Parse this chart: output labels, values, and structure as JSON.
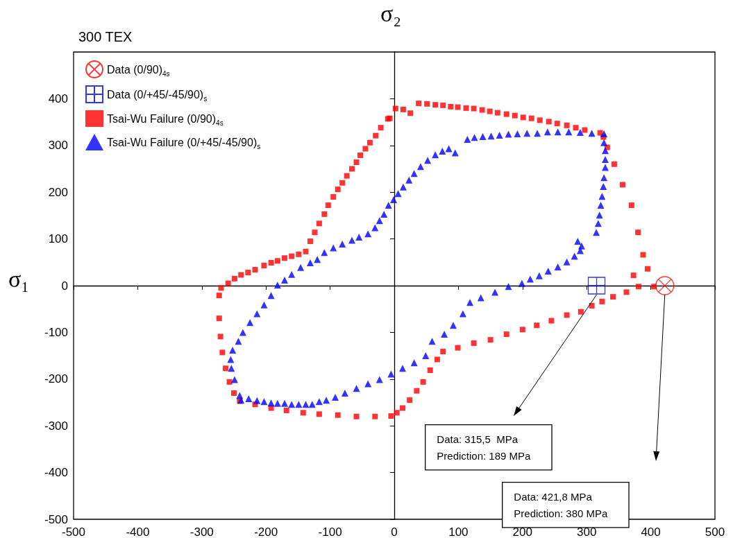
{
  "chart_data": {
    "type": "scatter",
    "title": "300 TEX",
    "xlabel": "σ₂",
    "ylabel": "σ₁",
    "xlim": [
      -500,
      500
    ],
    "xticks": [
      -500,
      -400,
      -300,
      -200,
      -100,
      0,
      100,
      200,
      300,
      400,
      500
    ],
    "ylim": [
      -500,
      500
    ],
    "yticks": [
      -500,
      -400,
      -300,
      -200,
      -100,
      0,
      100,
      200,
      300,
      400
    ],
    "legend": "top left",
    "series": [
      {
        "name": "Data (0/90)$_{4s}$",
        "color": "#ff0000",
        "marker": "circle",
        "x": [
          421.8
        ],
        "values": [
          0
        ]
      },
      {
        "name": "Data (0/+45/-45/90)$_{s}$",
        "color": "#0000ff",
        "marker": "cross",
        "x": [
          315.5
        ],
        "values": [
          0
        ]
      },
      {
        "name": "Tsai-Wu Failure (0/90)$_{4s}$",
        "color": "#ff0000",
        "marker": "square",
        "x": [
          395,
          388,
          380,
          370,
          356,
          343,
          332,
          326,
          321,
          297,
          283,
          269,
          254,
          241,
          227,
          214,
          201,
          188,
          175,
          161,
          149,
          137,
          124,
          112,
          99,
          88,
          76,
          64,
          51,
          38,
          25,
          14,
          2,
          -7,
          -10,
          -21,
          -29,
          -38,
          -45,
          -53,
          -59,
          -66,
          -74,
          -81,
          -88,
          -95,
          -103,
          -109,
          -117,
          -124,
          -131,
          -138,
          -149,
          -160,
          -171,
          -182,
          -192,
          -203,
          -217,
          -228,
          -239,
          -249,
          -259,
          -270,
          -273,
          -273,
          -271,
          -268,
          -263,
          -257,
          -250,
          -241,
          -217,
          -192,
          -168,
          -142,
          -117,
          -88,
          -59,
          -30,
          -5,
          4,
          13,
          24,
          35,
          45,
          56,
          67,
          76,
          99,
          124,
          150,
          175,
          200,
          222,
          245,
          269,
          291,
          308,
          324,
          341,
          362,
          381,
          373,
          405
        ],
        "values": [
          36,
          66,
          114,
          172,
          216,
          260,
          296,
          318,
          327,
          333,
          338,
          343,
          347,
          351,
          354,
          358,
          360,
          364,
          367,
          370,
          373,
          376,
          379,
          380,
          382,
          383,
          386,
          387,
          389,
          390,
          369,
          377,
          379,
          358,
          357,
          338,
          321,
          306,
          293,
          279,
          264,
          250,
          235,
          220,
          206,
          190,
          172,
          153,
          133,
          114,
          95,
          73,
          67,
          63,
          59,
          53,
          49,
          43,
          34,
          28,
          23,
          15,
          5,
          -5,
          -21,
          -70,
          -109,
          -143,
          -177,
          -206,
          -230,
          -247,
          -254,
          -262,
          -267,
          -272,
          -275,
          -277,
          -280,
          -280,
          -279,
          -272,
          -262,
          -245,
          -225,
          -206,
          -181,
          -158,
          -141,
          -133,
          -123,
          -116,
          -104,
          -94,
          -85,
          -75,
          -63,
          -56,
          -43,
          -34,
          -24,
          -14,
          -2,
          22,
          -2
        ]
      },
      {
        "name": "Tsai-Wu Failure (0/+45/-45/90)$_{s}$",
        "color": "#0000ff",
        "marker": "triangle",
        "x": [
          327,
          308,
          290,
          272,
          255,
          239,
          223,
          207,
          192,
          178,
          164,
          151,
          138,
          125,
          114,
          95,
          85,
          75,
          64,
          52,
          41,
          31,
          23,
          14,
          6,
          -1,
          -9,
          -16,
          -23,
          -30,
          -41,
          -55,
          -66,
          -81,
          -95,
          -109,
          -120,
          -131,
          -146,
          -160,
          -171,
          -182,
          -192,
          -203,
          -214,
          -225,
          -236,
          -243,
          -252,
          -255,
          -254,
          -249,
          -241,
          -239,
          -227,
          -214,
          -203,
          -192,
          -182,
          -171,
          -160,
          -149,
          -138,
          -128,
          -117,
          -106,
          -92,
          -77,
          -59,
          -41,
          -23,
          -5,
          13,
          31,
          49,
          59,
          78,
          92,
          107,
          118,
          135,
          157,
          178,
          199,
          212,
          226,
          240,
          255,
          269,
          281,
          290,
          292,
          286,
          315,
          318,
          320,
          322,
          324,
          326,
          327,
          329,
          329,
          329,
          327
        ],
        "values": [
          325,
          326,
          328,
          329,
          329,
          329,
          326,
          326,
          325,
          324,
          322,
          320,
          319,
          317,
          313,
          284,
          293,
          288,
          280,
          268,
          255,
          240,
          226,
          211,
          197,
          184,
          172,
          153,
          139,
          124,
          111,
          104,
          97,
          89,
          81,
          71,
          56,
          49,
          39,
          24,
          12,
          1,
          -21,
          -41,
          -60,
          -79,
          -100,
          -119,
          -138,
          -158,
          -177,
          -201,
          -235,
          -245,
          -242,
          -246,
          -248,
          -251,
          -252,
          -252,
          -254,
          -254,
          -254,
          -254,
          -248,
          -245,
          -239,
          -230,
          -220,
          -210,
          -201,
          -189,
          -177,
          -165,
          -150,
          -119,
          -104,
          -85,
          -60,
          -36,
          -26,
          -14,
          -2,
          5,
          14,
          21,
          31,
          40,
          51,
          63,
          75,
          85,
          95,
          114,
          133,
          151,
          172,
          191,
          212,
          231,
          253,
          270,
          289,
          306
        ]
      }
    ],
    "annotations": [
      "Data: 315,5  MPa\nPrediction: 189 MPa",
      "Data: 421,8 MPa\nPrediction: 380 MPa"
    ]
  }
}
